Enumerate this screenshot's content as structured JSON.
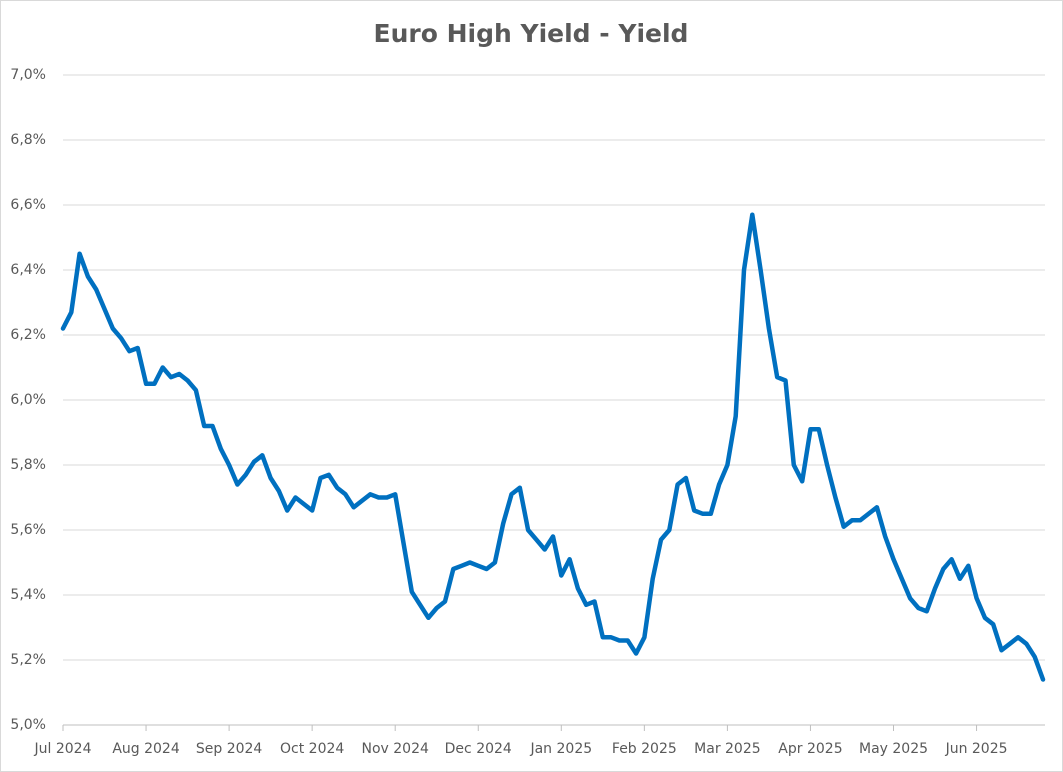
{
  "chart_data": {
    "type": "line",
    "title": "Euro High Yield - Yield",
    "categories": [
      "Jul 2024",
      null,
      null,
      null,
      null,
      null,
      null,
      null,
      null,
      null,
      "Aug 2024",
      null,
      null,
      null,
      null,
      null,
      null,
      null,
      null,
      null,
      "Sep 2024",
      null,
      null,
      null,
      null,
      null,
      null,
      null,
      null,
      null,
      "Oct 2024",
      null,
      null,
      null,
      null,
      null,
      null,
      null,
      null,
      null,
      "Nov 2024",
      null,
      null,
      null,
      null,
      null,
      null,
      null,
      null,
      null,
      "Dec 2024",
      null,
      null,
      null,
      null,
      null,
      null,
      null,
      null,
      null,
      "Jan 2025",
      null,
      null,
      null,
      null,
      null,
      null,
      null,
      null,
      null,
      "Feb 2025",
      null,
      null,
      null,
      null,
      null,
      null,
      null,
      null,
      null,
      "Mar 2025",
      null,
      null,
      null,
      null,
      null,
      null,
      null,
      null,
      null,
      "Apr 2025",
      null,
      null,
      null,
      null,
      null,
      null,
      null,
      null,
      null,
      "May 2025",
      null,
      null,
      null,
      null,
      null,
      null,
      null,
      null,
      null,
      "Jun 2025",
      null,
      null,
      null,
      null,
      null,
      null,
      null,
      null
    ],
    "series": [
      {
        "color": "#0070c0",
        "values": [
          6.22,
          6.27,
          6.45,
          6.38,
          6.34,
          6.28,
          6.22,
          6.19,
          6.15,
          6.16,
          6.05,
          6.05,
          6.1,
          6.07,
          6.08,
          6.06,
          6.03,
          5.92,
          5.92,
          5.85,
          5.8,
          5.74,
          5.77,
          5.81,
          5.83,
          5.76,
          5.72,
          5.66,
          5.7,
          5.68,
          5.66,
          5.76,
          5.77,
          5.73,
          5.71,
          5.67,
          5.69,
          5.71,
          5.7,
          5.7,
          5.71,
          5.56,
          5.41,
          5.37,
          5.33,
          5.36,
          5.38,
          5.48,
          5.49,
          5.5,
          5.49,
          5.48,
          5.5,
          5.62,
          5.71,
          5.73,
          5.6,
          5.57,
          5.54,
          5.58,
          5.46,
          5.51,
          5.42,
          5.37,
          5.38,
          5.27,
          5.27,
          5.26,
          5.26,
          5.22,
          5.27,
          5.45,
          5.57,
          5.6,
          5.74,
          5.76,
          5.66,
          5.65,
          5.65,
          5.74,
          5.8,
          5.95,
          6.4,
          6.57,
          6.4,
          6.22,
          6.07,
          6.06,
          5.8,
          5.75,
          5.91,
          5.91,
          5.8,
          5.7,
          5.61,
          5.63,
          5.63,
          5.65,
          5.67,
          5.58,
          5.51,
          5.45,
          5.39,
          5.36,
          5.35,
          5.42,
          5.48,
          5.51,
          5.45,
          5.49,
          5.39,
          5.33,
          5.31,
          5.23,
          5.25,
          5.27,
          5.25,
          5.21,
          5.14
        ]
      }
    ],
    "ylim": [
      5.0,
      7.0
    ],
    "yticks": [
      {
        "value": 5.0,
        "label": "5,0%"
      },
      {
        "value": 5.2,
        "label": "5,2%"
      },
      {
        "value": 5.4,
        "label": "5,4%"
      },
      {
        "value": 5.6,
        "label": "5,6%"
      },
      {
        "value": 5.8,
        "label": "5,8%"
      },
      {
        "value": 6.0,
        "label": "6,0%"
      },
      {
        "value": 6.2,
        "label": "6,2%"
      },
      {
        "value": 6.4,
        "label": "6,4%"
      },
      {
        "value": 6.6,
        "label": "6,6%"
      },
      {
        "value": 6.8,
        "label": "6,8%"
      },
      {
        "value": 7.0,
        "label": "7,0%"
      }
    ],
    "grid": true
  }
}
